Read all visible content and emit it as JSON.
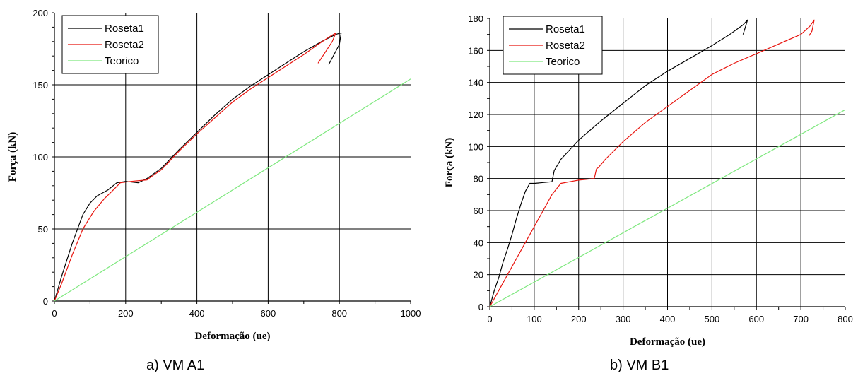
{
  "colors": {
    "Roseta1": "#000000",
    "Roseta2": "#e8140e",
    "Teorico": "#7ee87e"
  },
  "chart_data": [
    {
      "type": "line",
      "caption": "a) VM A1",
      "xlabel": "Deformação (ue)",
      "ylabel": "Força (kN)",
      "xlim": [
        0,
        1000
      ],
      "ylim": [
        0,
        200
      ],
      "xticks": [
        0,
        200,
        400,
        600,
        800,
        1000
      ],
      "yticks": [
        0,
        50,
        100,
        150,
        200
      ],
      "grid": true,
      "legend": "top-left",
      "series": [
        {
          "name": "Roseta1",
          "x": [
            0,
            20,
            50,
            80,
            100,
            120,
            150,
            175,
            200,
            235,
            260,
            300,
            350,
            400,
            450,
            500,
            550,
            600,
            650,
            700,
            750,
            790,
            805,
            800,
            770
          ],
          "y": [
            0,
            17,
            40,
            60,
            68,
            73,
            77,
            82,
            83,
            82,
            85,
            92,
            105,
            117,
            129,
            140,
            149,
            157,
            165,
            173,
            180,
            185,
            186,
            178,
            164
          ]
        },
        {
          "name": "Roseta2",
          "x": [
            0,
            20,
            50,
            80,
            110,
            140,
            165,
            185,
            215,
            260,
            270,
            300,
            350,
            400,
            450,
            500,
            550,
            600,
            650,
            700,
            740,
            770,
            790,
            780,
            740
          ],
          "y": [
            0,
            12,
            32,
            50,
            62,
            71,
            77,
            82,
            83,
            84,
            86,
            91,
            104,
            116,
            127,
            138,
            147,
            155,
            163,
            171,
            178,
            183,
            186,
            180,
            165
          ]
        },
        {
          "name": "Teorico",
          "x": [
            0,
            1000
          ],
          "y": [
            0,
            154
          ]
        }
      ]
    },
    {
      "type": "line",
      "caption": "b) VM B1",
      "xlabel": "Deformação (ue)",
      "ylabel": "Força (kN)",
      "xlim": [
        0,
        800
      ],
      "ylim": [
        0,
        180
      ],
      "xticks": [
        0,
        100,
        200,
        300,
        400,
        500,
        600,
        700,
        800
      ],
      "yticks": [
        0,
        20,
        40,
        60,
        80,
        100,
        120,
        140,
        160,
        180
      ],
      "grid": true,
      "legend": "top-left",
      "series": [
        {
          "name": "Roseta1",
          "x": [
            0,
            10,
            20,
            30,
            40,
            50,
            60,
            70,
            80,
            90,
            100,
            140,
            145,
            160,
            180,
            200,
            250,
            300,
            350,
            400,
            450,
            500,
            540,
            570,
            580,
            570
          ],
          "y": [
            0,
            10,
            18,
            28,
            36,
            45,
            55,
            64,
            72,
            77,
            77,
            78,
            85,
            92,
            98,
            104,
            116,
            127,
            138,
            147,
            155,
            163,
            170,
            176,
            179,
            170
          ]
        },
        {
          "name": "Roseta2",
          "x": [
            0,
            20,
            40,
            60,
            80,
            100,
            120,
            140,
            160,
            180,
            200,
            235,
            240,
            245,
            260,
            300,
            350,
            400,
            450,
            500,
            550,
            600,
            650,
            700,
            720,
            730,
            725,
            718
          ],
          "y": [
            0,
            10,
            20,
            30,
            40,
            50,
            60,
            70,
            77,
            78,
            79,
            80,
            86,
            87,
            92,
            103,
            115,
            125,
            135,
            145,
            152,
            158,
            164,
            170,
            175,
            179,
            172,
            169
          ]
        },
        {
          "name": "Teorico",
          "x": [
            0,
            800
          ],
          "y": [
            0,
            123
          ]
        }
      ]
    }
  ]
}
